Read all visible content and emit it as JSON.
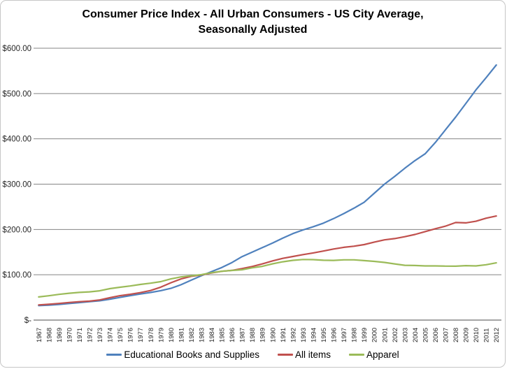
{
  "title": {
    "line1": "Consumer Price Index - All Urban Consumers - US City Average,",
    "line2": "Seasonally Adjusted"
  },
  "chart_data": {
    "type": "line",
    "title": "Consumer Price Index - All Urban Consumers - US City Average, Seasonally Adjusted",
    "categories": [
      "1967",
      "1968",
      "1969",
      "1970",
      "1971",
      "1972",
      "1973",
      "1974",
      "1975",
      "1976",
      "1977",
      "1978",
      "1979",
      "1980",
      "1981",
      "1982",
      "1983",
      "1984",
      "1985",
      "1986",
      "1987",
      "1988",
      "1989",
      "1990",
      "1991",
      "1992",
      "1993",
      "1994",
      "1995",
      "1996",
      "1997",
      "1998",
      "1999",
      "2000",
      "2001",
      "2002",
      "2003",
      "2004",
      "2005",
      "2006",
      "2007",
      "2008",
      "2009",
      "2010",
      "2011",
      "2012"
    ],
    "series": [
      {
        "name": "Educational Books and Supplies",
        "color": "#4F81BD",
        "values": [
          32.0,
          33.0,
          34.5,
          36.5,
          38.5,
          40.5,
          42.5,
          46.0,
          50.0,
          54.0,
          57.5,
          61.0,
          65.0,
          70.0,
          78.0,
          88.0,
          98.0,
          107.0,
          116.0,
          127.0,
          140.0,
          150.0,
          160.0,
          170.0,
          181.0,
          191.0,
          199.0,
          206.0,
          214.0,
          224.0,
          235.0,
          247.0,
          260.0,
          280.0,
          300.0,
          317.0,
          335.0,
          352.0,
          367.0,
          392.0,
          420.0,
          448.0,
          478.0,
          508.0,
          535.0,
          563.0
        ]
      },
      {
        "name": "All items",
        "color": "#C0504D",
        "values": [
          33.4,
          34.8,
          36.7,
          38.8,
          40.5,
          41.8,
          44.4,
          49.3,
          53.8,
          56.9,
          60.6,
          65.2,
          72.6,
          82.4,
          90.9,
          96.5,
          99.6,
          103.9,
          107.6,
          109.6,
          113.6,
          118.3,
          124.0,
          130.7,
          136.2,
          140.3,
          144.5,
          148.2,
          152.4,
          156.9,
          160.5,
          163.0,
          166.6,
          172.2,
          177.1,
          179.9,
          184.0,
          188.9,
          195.3,
          201.6,
          207.3,
          215.3,
          214.5,
          218.1,
          224.9,
          229.6
        ]
      },
      {
        "name": "Apparel",
        "color": "#9BBB59",
        "values": [
          51.0,
          53.7,
          56.8,
          59.2,
          61.1,
          62.3,
          64.6,
          69.4,
          72.5,
          75.2,
          78.6,
          81.4,
          84.9,
          90.9,
          95.3,
          97.8,
          100.2,
          104.5,
          107.8,
          109.5,
          111.0,
          115.4,
          118.6,
          124.1,
          128.7,
          131.9,
          133.7,
          133.4,
          132.0,
          131.7,
          132.9,
          133.0,
          131.3,
          129.6,
          127.3,
          124.0,
          120.9,
          120.4,
          119.5,
          119.5,
          119.0,
          118.9,
          120.1,
          119.5,
          122.1,
          126.3
        ]
      }
    ],
    "y_axis": {
      "min": 0,
      "max": 600,
      "tick_interval": 100,
      "tick_labels": [
        "$-",
        "$100.00",
        "$200.00",
        "$300.00",
        "$400.00",
        "$500.00",
        "$600.00"
      ]
    },
    "x_axis": {
      "label_rotation_degrees": 90
    },
    "legend_position": "bottom",
    "grid": true
  },
  "legend": {
    "items": [
      {
        "label": "Educational Books and Supplies",
        "color": "#4F81BD"
      },
      {
        "label": "All items",
        "color": "#C0504D"
      },
      {
        "label": "Apparel",
        "color": "#9BBB59"
      }
    ]
  },
  "style_colors": {
    "gridline": "#848484",
    "axis_line": "#6E6E6E",
    "axis_label_text": "#262626",
    "frame_border": "#C6C6C6"
  }
}
